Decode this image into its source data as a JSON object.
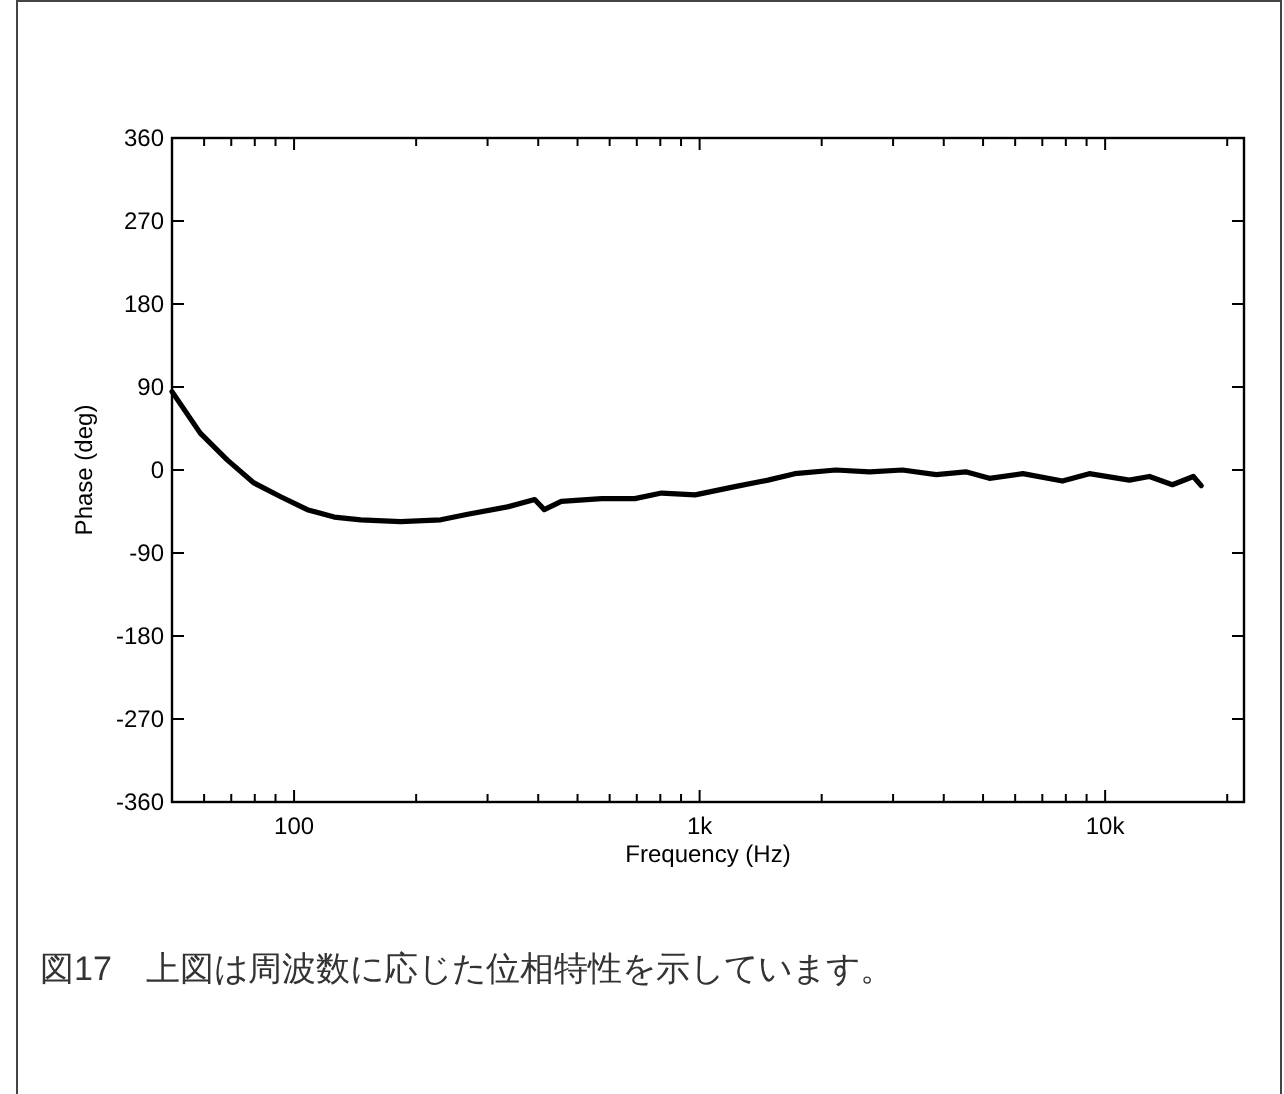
{
  "chart_data": {
    "type": "line",
    "xlabel": "Frequency (Hz)",
    "ylabel": "Phase (deg)",
    "log": "x",
    "grid": false,
    "line_style": "solid",
    "marker": "none",
    "xlim": [
      50,
      22000
    ],
    "ylim": [
      -360,
      360
    ],
    "xticks": [
      {
        "value": 60,
        "label": null
      },
      {
        "value": 70,
        "label": null
      },
      {
        "value": 80,
        "label": null
      },
      {
        "value": 90,
        "label": null
      },
      {
        "value": 100,
        "label": "100"
      },
      {
        "value": 200,
        "label": null
      },
      {
        "value": 300,
        "label": null
      },
      {
        "value": 400,
        "label": null
      },
      {
        "value": 500,
        "label": null
      },
      {
        "value": 600,
        "label": null
      },
      {
        "value": 700,
        "label": null
      },
      {
        "value": 800,
        "label": null
      },
      {
        "value": 900,
        "label": null
      },
      {
        "value": 1000,
        "label": "1k"
      },
      {
        "value": 2000,
        "label": null
      },
      {
        "value": 3000,
        "label": null
      },
      {
        "value": 4000,
        "label": null
      },
      {
        "value": 5000,
        "label": null
      },
      {
        "value": 6000,
        "label": null
      },
      {
        "value": 7000,
        "label": null
      },
      {
        "value": 8000,
        "label": null
      },
      {
        "value": 9000,
        "label": null
      },
      {
        "value": 10000,
        "label": "10k"
      },
      {
        "value": 20000,
        "label": null
      }
    ],
    "yticks": [
      -360,
      -270,
      -180,
      -90,
      0,
      90,
      180,
      270,
      360
    ],
    "series": [
      {
        "color": "#000000",
        "x": [
          50,
          58.7,
          68.4,
          79.6,
          92.7,
          107.8,
          125.6,
          146,
          183,
          230,
          268,
          336,
          392,
          414,
          456,
          573,
          692,
          806,
          975,
          1222,
          1475,
          1716,
          2167,
          2626,
          3163,
          3833,
          4530,
          5184,
          6270,
          7847,
          9140,
          11470,
          12860,
          14650,
          16500,
          17250
        ],
        "values": [
          85,
          40,
          11,
          -14,
          -29,
          -43,
          -51,
          -54,
          -56,
          -54,
          -48,
          -40,
          -32,
          -43,
          -34,
          -31,
          -31,
          -25,
          -27,
          -18,
          -11,
          -4,
          0,
          -2,
          0,
          -5,
          -2,
          -9,
          -4,
          -12,
          -4,
          -11,
          -7,
          -16,
          -7,
          -17
        ]
      }
    ],
    "annotations": [
      "図17　上図は周波数に応じた位相特性を示しています。"
    ]
  }
}
